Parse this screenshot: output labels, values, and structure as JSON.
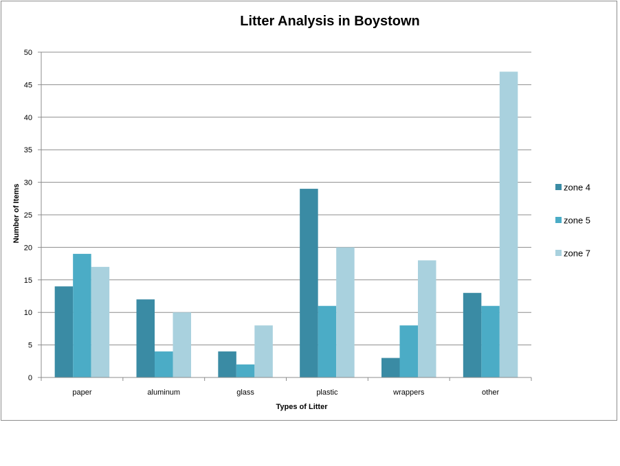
{
  "chart_data": {
    "type": "bar",
    "title": "Litter Analysis in Boystown",
    "xlabel": "Types of Litter",
    "ylabel": "Number of Items",
    "categories": [
      "paper",
      "aluminum",
      "glass",
      "plastic",
      "wrappers",
      "other"
    ],
    "series": [
      {
        "name": "zone 4",
        "color": "#3A8BA4",
        "values": [
          14,
          12,
          4,
          29,
          3,
          13
        ]
      },
      {
        "name": "zone 5",
        "color": "#4BACC6",
        "values": [
          19,
          4,
          2,
          11,
          8,
          11
        ]
      },
      {
        "name": "zone 7",
        "color": "#A9D1DE",
        "values": [
          17,
          10,
          8,
          20,
          18,
          47
        ]
      }
    ],
    "ylim": [
      0,
      50
    ],
    "yticks": [
      0,
      5,
      10,
      15,
      20,
      25,
      30,
      35,
      40,
      45,
      50
    ],
    "grid": true,
    "legend_position": "right"
  }
}
